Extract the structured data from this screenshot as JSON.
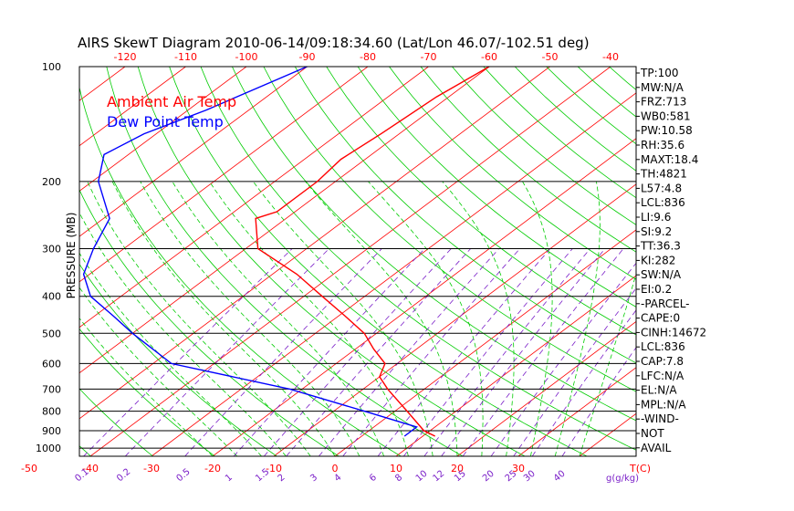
{
  "chart_data": {
    "type": "line",
    "title": "AIRS SkewT Diagram 2010-06-14/09:18:34.60 (Lat/Lon 46.07/-102.51 deg)",
    "ylabel": "PRESSURE (MB)",
    "y_scale": "log",
    "ylim": [
      1050,
      100
    ],
    "pressure_ticks": [
      100,
      200,
      300,
      400,
      500,
      600,
      700,
      800,
      900,
      1000
    ],
    "pressure_tick_labels": [
      "100",
      "200",
      "300",
      "400",
      "500",
      "600",
      "700",
      "800",
      "900",
      "1000"
    ],
    "top_temp_ticks": [
      -120,
      -110,
      -100,
      -90,
      -80,
      -70,
      -60,
      -50,
      -40
    ],
    "top_temp_labels": [
      "-120",
      "-110",
      "-100",
      "-90",
      "-80",
      "-70",
      "-60",
      "-50",
      "-40"
    ],
    "bottom_temp_ticks": [
      -50,
      -40,
      -30,
      -20,
      -10,
      0,
      10,
      20,
      30
    ],
    "bottom_temp_labels": [
      "-50",
      "-40",
      "-30",
      "-20",
      "-10",
      "0",
      "10",
      "20",
      "30"
    ],
    "bottom_temp_unit": "T(C)",
    "mixing_ratio_labels": [
      "0.1",
      "0.2",
      "0.5",
      "1",
      "1.5",
      "2",
      "3",
      "4",
      "6",
      "8",
      "10",
      "12",
      "15",
      "20",
      "25",
      "30",
      "40"
    ],
    "mixing_ratio_unit": "g(g/kg)",
    "legend": [
      "Ambient Air Temp",
      "Dew Point Temp"
    ],
    "legend_placement": "top-left",
    "series": [
      {
        "name": "Ambient Air Temp",
        "color": "#ff0000",
        "points": [
          [
            100,
            -60
          ],
          [
            120,
            -62
          ],
          [
            150,
            -63
          ],
          [
            175,
            -64
          ],
          [
            200,
            -63
          ],
          [
            240,
            -63
          ],
          [
            250,
            -65
          ],
          [
            300,
            -58
          ],
          [
            350,
            -46
          ],
          [
            400,
            -37
          ],
          [
            450,
            -29
          ],
          [
            500,
            -22
          ],
          [
            550,
            -17
          ],
          [
            600,
            -12
          ],
          [
            650,
            -10
          ],
          [
            700,
            -6
          ],
          [
            800,
            2
          ],
          [
            900,
            9
          ],
          [
            930,
            12
          ]
        ]
      },
      {
        "name": "Dew Point Temp",
        "color": "#0000ff",
        "points": [
          [
            100,
            -90
          ],
          [
            130,
            -97
          ],
          [
            150,
            -102
          ],
          [
            170,
            -104
          ],
          [
            200,
            -99
          ],
          [
            250,
            -89
          ],
          [
            300,
            -85
          ],
          [
            350,
            -81
          ],
          [
            400,
            -75
          ],
          [
            450,
            -67
          ],
          [
            500,
            -60
          ],
          [
            600,
            -47
          ],
          [
            700,
            -22
          ],
          [
            800,
            -5
          ],
          [
            880,
            7
          ],
          [
            930,
            7
          ]
        ]
      }
    ],
    "indices": [
      "TP:100",
      "MW:N/A",
      "FRZ:713",
      "WB0:581",
      "PW:10.58",
      "RH:35.6",
      "MAXT:18.4",
      "TH:4821",
      "L57:4.8",
      "LCL:836",
      "LI:9.6",
      "SI:9.2",
      "TT:36.3",
      "KI:282",
      "SW:N/A",
      "EI:0.2",
      "-PARCEL-",
      "CAPE:0",
      "CINH:14672",
      "LCL:836",
      "CAP:7.8",
      "LFC:N/A",
      "EL:N/A",
      "MPL:N/A",
      "-WIND-",
      "NOT",
      "AVAIL"
    ],
    "colors": {
      "isotherm": "#ff0000",
      "dry_adiabat": "#00cc00",
      "moist_adiabat": "#00cc00",
      "mixing_ratio": "#7a1ec8",
      "isobar": "#000000",
      "temperature": "#ff0000",
      "dewpoint": "#0000ff"
    },
    "grid": true
  }
}
